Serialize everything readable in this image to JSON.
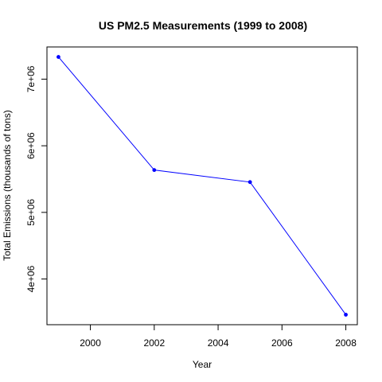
{
  "chart_data": {
    "type": "line",
    "title": "US PM2.5 Measurements (1999 to 2008)",
    "xlabel": "Year",
    "ylabel": "Total Emissions (thousands of tons)",
    "x": [
      1999,
      2002,
      2005,
      2008
    ],
    "series": [
      {
        "values": [
          7332967,
          5635780,
          5454703,
          3464206
        ]
      }
    ],
    "xlim": [
      1998.64,
      2008.36
    ],
    "ylim": [
      3314016,
      7483157
    ],
    "xticks": [
      2000,
      2002,
      2004,
      2006,
      2008
    ],
    "xtick_labels": [
      "2000",
      "2002",
      "2004",
      "2006",
      "2008"
    ],
    "yticks": [
      4000000,
      5000000,
      6000000,
      7000000
    ],
    "ytick_labels": [
      "4e+06",
      "5e+06",
      "6e+06",
      "7e+06"
    ],
    "line_color": "#0000ff",
    "marker": "filled-circle",
    "grid": false,
    "legend": "none",
    "box": true
  }
}
